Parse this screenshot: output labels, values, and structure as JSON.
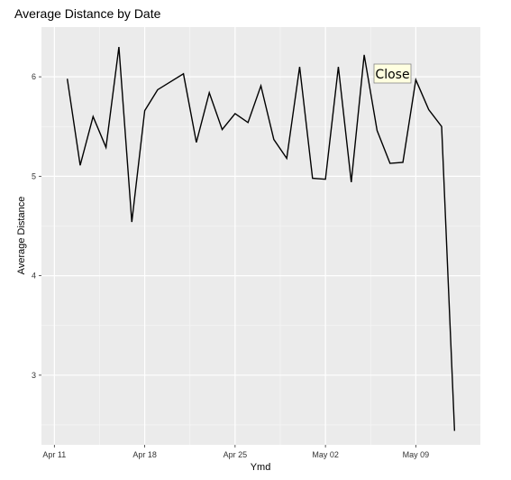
{
  "chart_data": {
    "type": "line",
    "title": "Average Distance by Date",
    "xlabel": "Ymd",
    "ylabel": "Average Distance",
    "x_ticks": [
      "Apr 11",
      "Apr 18",
      "Apr 25",
      "May 02",
      "May 09"
    ],
    "y_ticks": [
      "3",
      "4",
      "5",
      "6"
    ],
    "xlim": [
      "2021-04-10",
      "2021-05-14"
    ],
    "ylim": [
      2.3,
      6.5
    ],
    "grid": true,
    "background": "#ebebeb",
    "line_color": "#000000",
    "series": [
      {
        "x": [
          "2021-04-12",
          "2021-04-13",
          "2021-04-14",
          "2021-04-15",
          "2021-04-16",
          "2021-04-17",
          "2021-04-18",
          "2021-04-19",
          "2021-04-21",
          "2021-04-22",
          "2021-04-23",
          "2021-04-24",
          "2021-04-25",
          "2021-04-26",
          "2021-04-27",
          "2021-04-28",
          "2021-04-29",
          "2021-04-30",
          "2021-05-01",
          "2021-05-02",
          "2021-05-03",
          "2021-05-04",
          "2021-05-05",
          "2021-05-06",
          "2021-05-07",
          "2021-05-08",
          "2021-05-09",
          "2021-05-10",
          "2021-05-11",
          "2021-05-12"
        ],
        "y": [
          5.98,
          5.11,
          5.6,
          5.29,
          6.3,
          4.54,
          5.66,
          5.87,
          6.03,
          5.34,
          5.84,
          5.47,
          5.63,
          5.54,
          5.91,
          5.37,
          5.18,
          6.1,
          4.98,
          4.97,
          6.1,
          4.94,
          6.22,
          5.46,
          5.13,
          5.14,
          5.97,
          5.67,
          5.5,
          2.44
        ]
      }
    ]
  },
  "overlay": {
    "close_label": "Close",
    "close_bg": "#ffffe0"
  }
}
